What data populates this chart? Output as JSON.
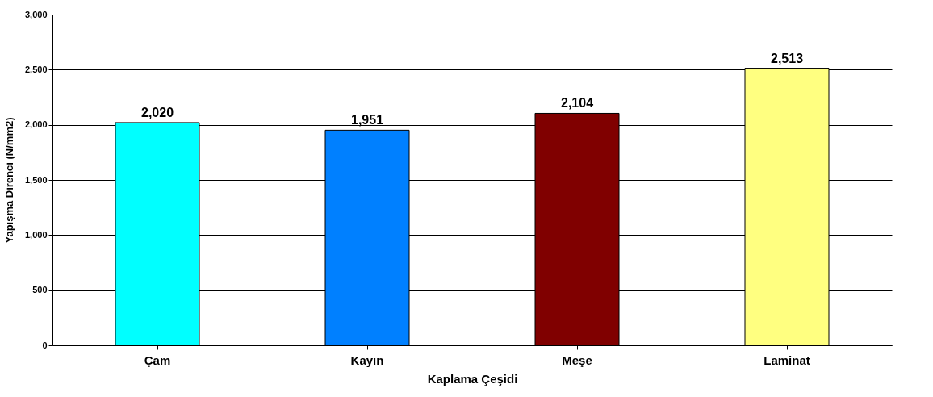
{
  "chart_data": {
    "type": "bar",
    "xlabel": "Kaplama Çeşidi",
    "ylabel": "Yapışma Direnci (N/mm2)",
    "categories": [
      "Çam",
      "Kayın",
      "Meşe",
      "Laminat"
    ],
    "values": [
      2020,
      1951,
      2104,
      2513
    ],
    "value_labels": [
      "2,020",
      "1,951",
      "2,104",
      "2,513"
    ],
    "colors": [
      "#00ffff",
      "#0080ff",
      "#800000",
      "#ffff80"
    ],
    "ylim": [
      0,
      3000
    ],
    "yticks": [
      0,
      500,
      {
        "value": 1000,
        "label": "1,000"
      },
      {
        "value": 1500,
        "label": "1,500"
      },
      {
        "value": 2000,
        "label": "2,000"
      },
      {
        "value": 2500,
        "label": "2,500"
      },
      {
        "value": 3000,
        "label": "3,000"
      }
    ],
    "grid": "y"
  }
}
